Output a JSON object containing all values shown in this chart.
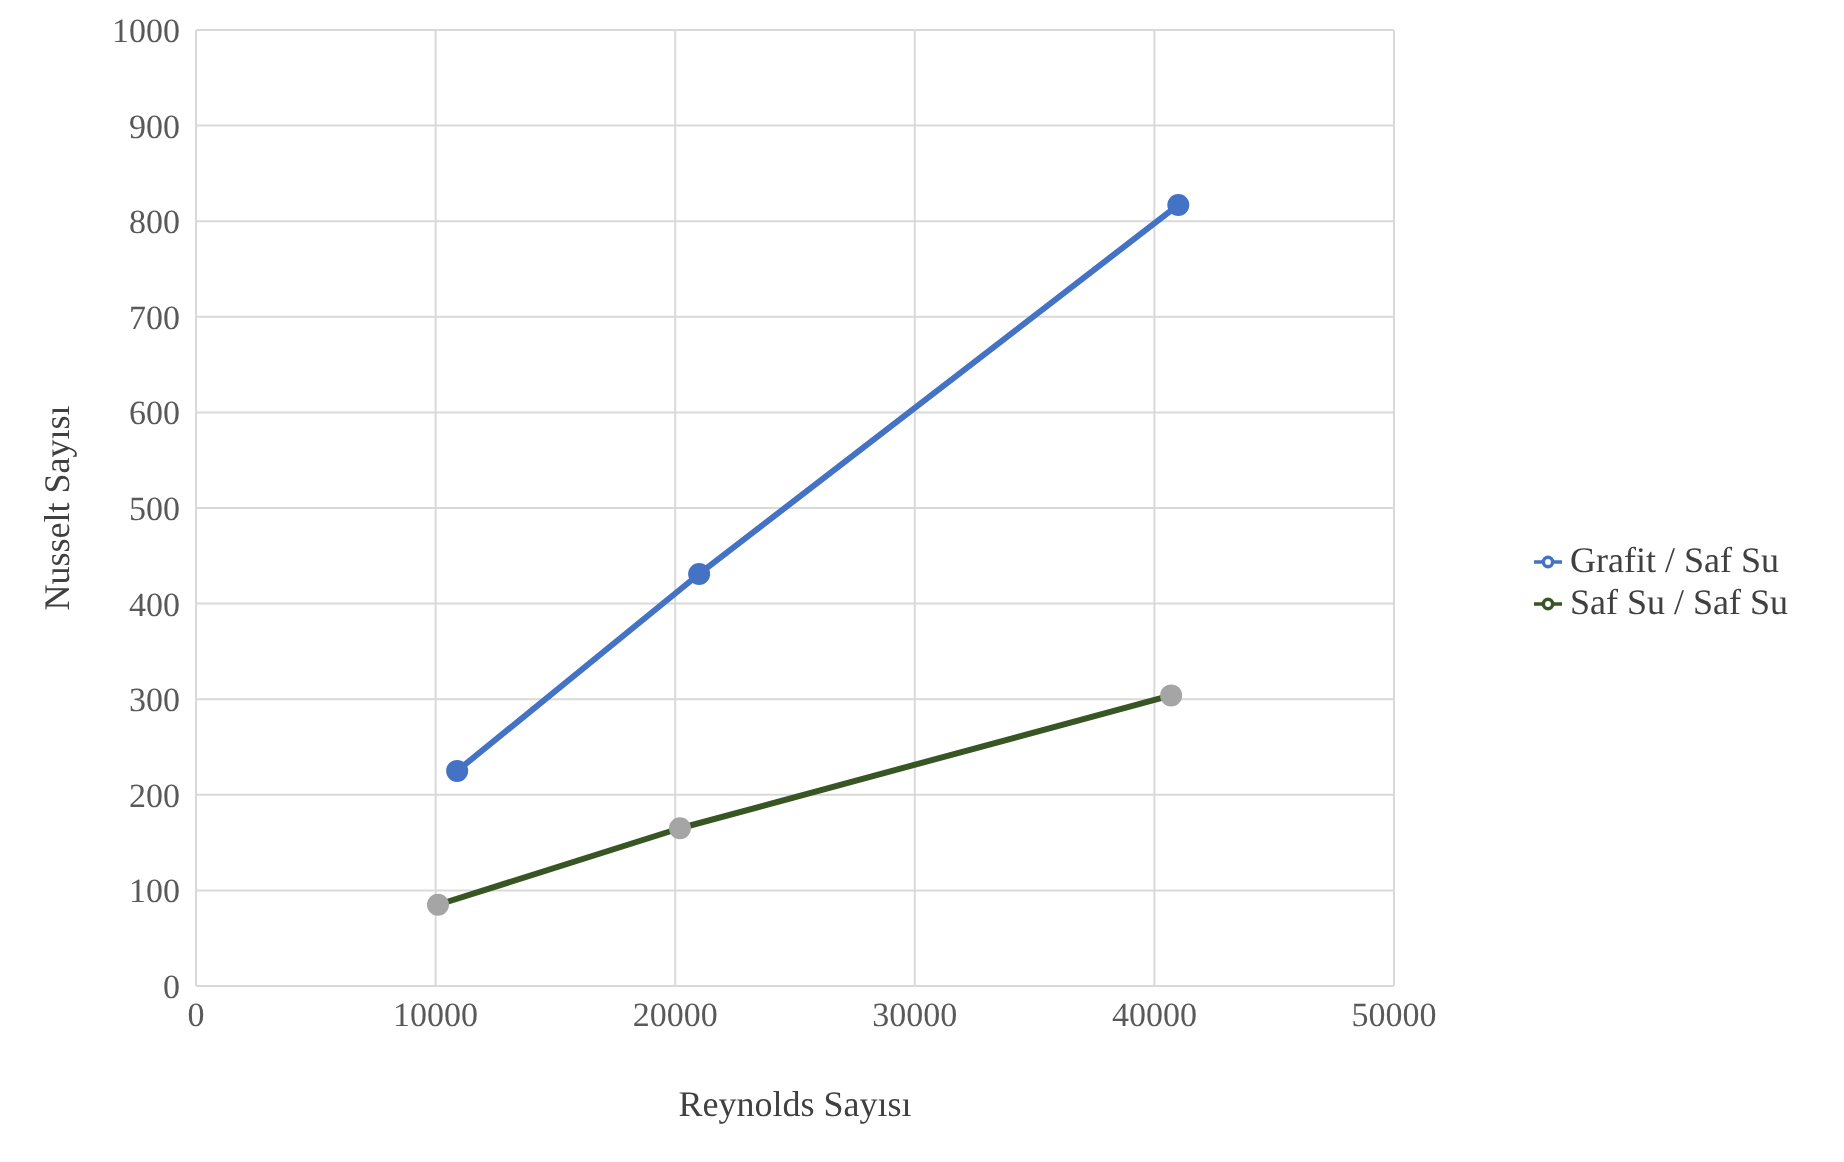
{
  "chart_data": {
    "type": "line",
    "xlabel": "Reynolds Sayısı",
    "ylabel": "Nusselt  Sayısı",
    "xlim": [
      0,
      50000
    ],
    "xticks": [
      0,
      10000,
      20000,
      30000,
      40000,
      50000
    ],
    "ylim": [
      0,
      1000
    ],
    "yticks": [
      0,
      100,
      200,
      300,
      400,
      500,
      600,
      700,
      800,
      900,
      1000
    ],
    "grid": true,
    "legend": "right",
    "marker": "circle",
    "series": [
      {
        "name": "Grafit / Saf Su",
        "color": "#4472c4",
        "x": [
          10900,
          21000,
          41000
        ],
        "values": [
          225,
          431,
          817
        ]
      },
      {
        "name": "Saf Su / Saf Su",
        "color": "#375623",
        "colors": [
          "#a5a5a5",
          "#a5a5a5",
          "#a5a5a5"
        ],
        "x": [
          10100,
          20200,
          40700
        ],
        "values": [
          85,
          165,
          304
        ]
      }
    ]
  }
}
